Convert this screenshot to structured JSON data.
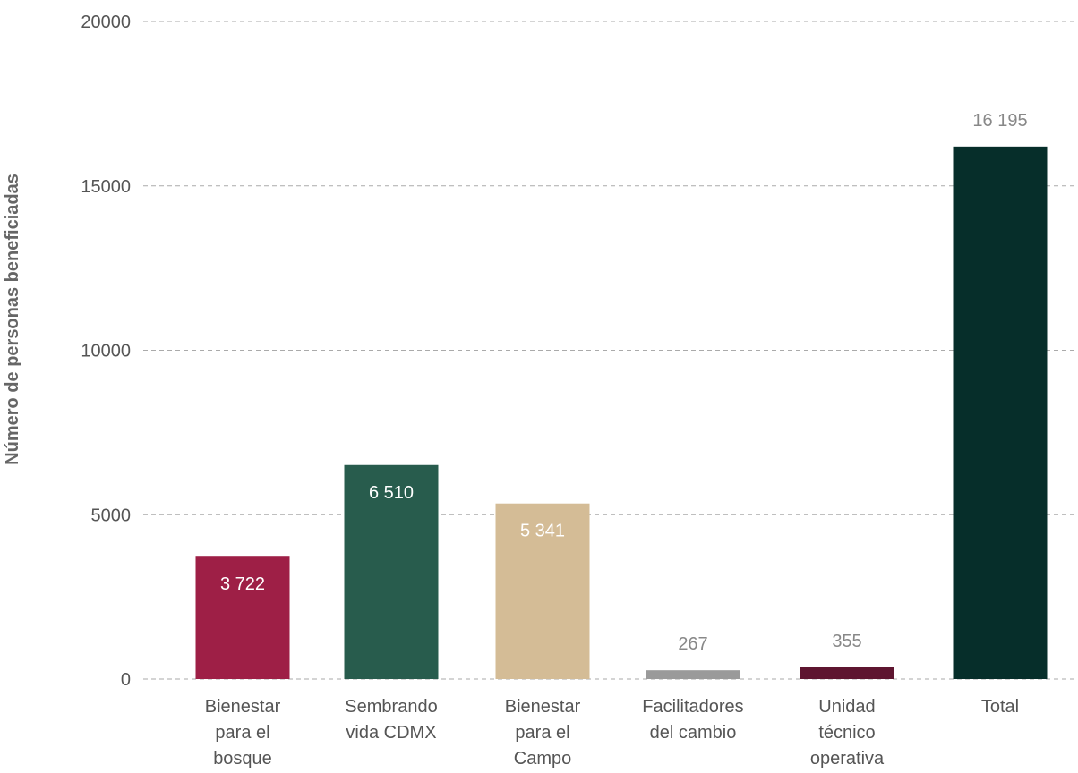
{
  "chart_data": {
    "type": "bar",
    "title": "",
    "xlabel": "",
    "ylabel": "Número de personas beneficiadas",
    "ylim": [
      0,
      20000
    ],
    "yticks": [
      0,
      5000,
      10000,
      15000,
      20000
    ],
    "grid": true,
    "legend": "none",
    "categories": [
      [
        "Bienestar",
        "para el",
        "bosque"
      ],
      [
        "Sembrando",
        "vida CDMX"
      ],
      [
        "Bienestar",
        "para el",
        "Campo"
      ],
      [
        "Facilitadores",
        "del cambio"
      ],
      [
        "Unidad",
        "técnico",
        "operativa"
      ],
      [
        "Total"
      ]
    ],
    "values": [
      3722,
      6510,
      5341,
      267,
      355,
      16195
    ],
    "value_labels": [
      "3 722",
      "6 510",
      "5 341",
      "267",
      "355",
      "16 195"
    ],
    "colors": [
      "#9E1F46",
      "#285C4D",
      "#D4BC96",
      "#9A9A9A",
      "#5E1530",
      "#062E2A"
    ],
    "label_placement": [
      "inside",
      "inside",
      "inside",
      "above",
      "above",
      "above"
    ],
    "label_colors": [
      "#ffffff",
      "#ffffff",
      "#ffffff",
      "#888888",
      "#888888",
      "#888888"
    ]
  }
}
